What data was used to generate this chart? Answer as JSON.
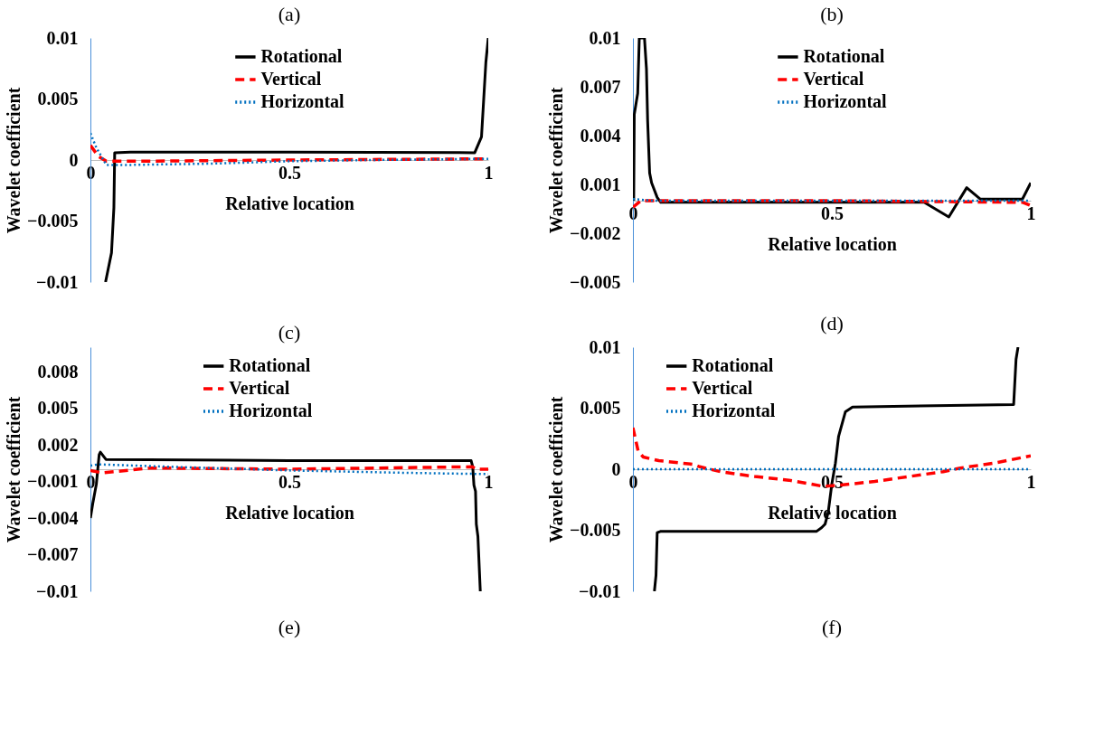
{
  "chart_data": [
    {
      "type": "line",
      "title": "(a)",
      "xlabel": "Relative location",
      "ylabel": "Wavelet coefficient",
      "xlim": [
        0,
        1
      ],
      "ylim": [
        -0.01,
        0.01
      ],
      "xticks": [
        0,
        0.5,
        1
      ],
      "yticks": [
        -0.01,
        -0.005,
        0,
        0.005,
        0.01
      ],
      "grid": false,
      "legend": "top right",
      "series": [
        {
          "name": "Rotational",
          "color": "#000000",
          "line_style": "solid",
          "x": [
            0.038,
            0.053,
            0.059,
            0.061,
            0.1,
            0.5,
            0.966,
            0.983,
            0.994,
            1
          ],
          "values": [
            -0.01,
            -0.0076,
            -0.0039,
            0.0006,
            0.00065,
            0.00065,
            0.0006,
            0.0019,
            0.008,
            0.01
          ]
        },
        {
          "name": "Vertical",
          "color": "#ff0000",
          "line_style": "dashed",
          "x": [
            0,
            0.02,
            0.04,
            0.1,
            0.5,
            1
          ],
          "values": [
            0.0012,
            0.0003,
            -0.0001,
            -0.0001,
            0,
            0.0001
          ]
        },
        {
          "name": "Horizontal",
          "color": "#0070c0",
          "line_style": "dotted",
          "x": [
            0,
            0.015,
            0.04,
            0.1,
            0.3,
            0.5,
            0.7,
            1
          ],
          "values": [
            0.0022,
            0.001,
            -0.0004,
            -0.0004,
            -0.0003,
            -0.0001,
            0,
            0.0001
          ]
        }
      ]
    },
    {
      "type": "line",
      "title": "(b)",
      "xlabel": "Relative location",
      "ylabel": "Wavelet coefficient",
      "xlim": [
        0,
        1
      ],
      "ylim": [
        -0.005,
        0.01
      ],
      "xticks": [
        0,
        0.5,
        1
      ],
      "yticks": [
        -0.005,
        -0.002,
        0.001,
        0.004,
        0.007,
        0.01
      ],
      "grid": false,
      "legend": "top right",
      "series": [
        {
          "name": "Rotational",
          "color": "#000000",
          "line_style": "solid",
          "x": [
            0.002,
            0.0034,
            0.012,
            0.016,
            0.029,
            0.034,
            0.037,
            0.042,
            0.047,
            0.061,
            0.07,
            0.4,
            0.732,
            0.794,
            0.839,
            0.873,
            0.979,
            1
          ],
          "values": [
            0,
            0.0053,
            0.0066,
            0.01,
            0.01,
            0.0081,
            0.0049,
            0.0017,
            0.0011,
            0.0002,
            -0.0001,
            -0.0001,
            -0.0001,
            -0.001,
            0.0008,
            0.0001,
            0.0001,
            0.0011
          ]
        },
        {
          "name": "Vertical",
          "color": "#ff0000",
          "line_style": "dashed",
          "x": [
            0,
            0.02,
            0.5,
            0.98,
            1
          ],
          "values": [
            -0.0004,
            0,
            0,
            -0.0001,
            -0.0003
          ]
        },
        {
          "name": "Horizontal",
          "color": "#0070c0",
          "line_style": "dotted",
          "x": [
            0,
            0.05,
            0.5,
            1
          ],
          "values": [
            0.0001,
            0,
            0,
            0
          ]
        }
      ]
    },
    {
      "type": "line",
      "title": "(c)",
      "xlabel": "Relative location",
      "ylabel": "Wavelet coefficient",
      "xlim": [
        0,
        1
      ],
      "ylim": [
        -0.01,
        0.01
      ],
      "xticks": [
        0,
        0.5,
        1
      ],
      "yticks": [
        -0.01,
        -0.007,
        -0.004,
        -0.001,
        0.002,
        0.005,
        0.008
      ],
      "grid": false,
      "legend": "top",
      "annotations": [
        "(e)"
      ],
      "series": [
        {
          "name": "Rotational",
          "color": "#000000",
          "line_style": "solid",
          "x": [
            0,
            0.006,
            0.015,
            0.022,
            0.025,
            0.039,
            0.5,
            0.957,
            0.961,
            0.964,
            0.968,
            0.97,
            0.974,
            0.98
          ],
          "values": [
            -0.004,
            -0.0028,
            -0.0012,
            0.0012,
            0.0014,
            0.0008,
            0.0007,
            0.0007,
            0.0002,
            -0.0013,
            -0.0018,
            -0.0045,
            -0.0055,
            -0.01
          ]
        },
        {
          "name": "Vertical",
          "color": "#ff0000",
          "line_style": "dashed",
          "x": [
            0,
            0.03,
            0.06,
            0.15,
            0.5,
            0.96,
            0.97,
            1
          ],
          "values": [
            -0.0001,
            -0.0003,
            -0.0002,
            0.0001,
            0,
            0.0002,
            0,
            0
          ]
        },
        {
          "name": "Horizontal",
          "color": "#0070c0",
          "line_style": "dotted",
          "x": [
            0,
            0.02,
            0.2,
            0.5,
            0.8,
            1
          ],
          "values": [
            0.0003,
            0.0004,
            0.0002,
            -0.0001,
            -0.0003,
            -0.0004
          ]
        }
      ]
    },
    {
      "type": "line",
      "title": "(d)",
      "xlabel": "Relative location",
      "ylabel": "Wavelet coefficient",
      "xlim": [
        0,
        1
      ],
      "ylim": [
        -0.01,
        0.01
      ],
      "xticks": [
        0,
        0.5,
        1
      ],
      "yticks": [
        -0.01,
        -0.005,
        0,
        0.005,
        0.01
      ],
      "grid": false,
      "legend": "top left",
      "annotations": [
        "(f)"
      ],
      "series": [
        {
          "name": "Rotational",
          "color": "#000000",
          "line_style": "solid",
          "x": [
            0.054,
            0.058,
            0.061,
            0.069,
            0.461,
            0.474,
            0.483,
            0.491,
            0.5,
            0.509,
            0.517,
            0.534,
            0.552,
            0.957,
            0.963,
            0.968
          ],
          "values": [
            -0.01,
            -0.0087,
            -0.0052,
            -0.0051,
            -0.0051,
            -0.0048,
            -0.0045,
            -0.0035,
            -0.0012,
            0.0005,
            0.0027,
            0.0047,
            0.0051,
            0.0053,
            0.009,
            0.01
          ]
        },
        {
          "name": "Vertical",
          "color": "#ff0000",
          "line_style": "dashed",
          "x": [
            0,
            0.013,
            0.026,
            0.065,
            0.151,
            0.168,
            0.22,
            0.306,
            0.392,
            0.444,
            0.478,
            0.522,
            0.608,
            0.694,
            0.78,
            0.823,
            0.909,
            1
          ],
          "values": [
            0.0034,
            0.0015,
            0.001,
            0.0007,
            0.0004,
            0.0002,
            -0.0002,
            -0.0006,
            -0.0009,
            -0.0012,
            -0.0014,
            -0.0013,
            -0.001,
            -0.0006,
            -0.0002,
            0.0001,
            0.0005,
            0.0011
          ]
        },
        {
          "name": "Horizontal",
          "color": "#0070c0",
          "line_style": "dotted",
          "x": [
            0,
            0.5,
            1
          ],
          "values": [
            0,
            0,
            0
          ]
        }
      ]
    }
  ]
}
